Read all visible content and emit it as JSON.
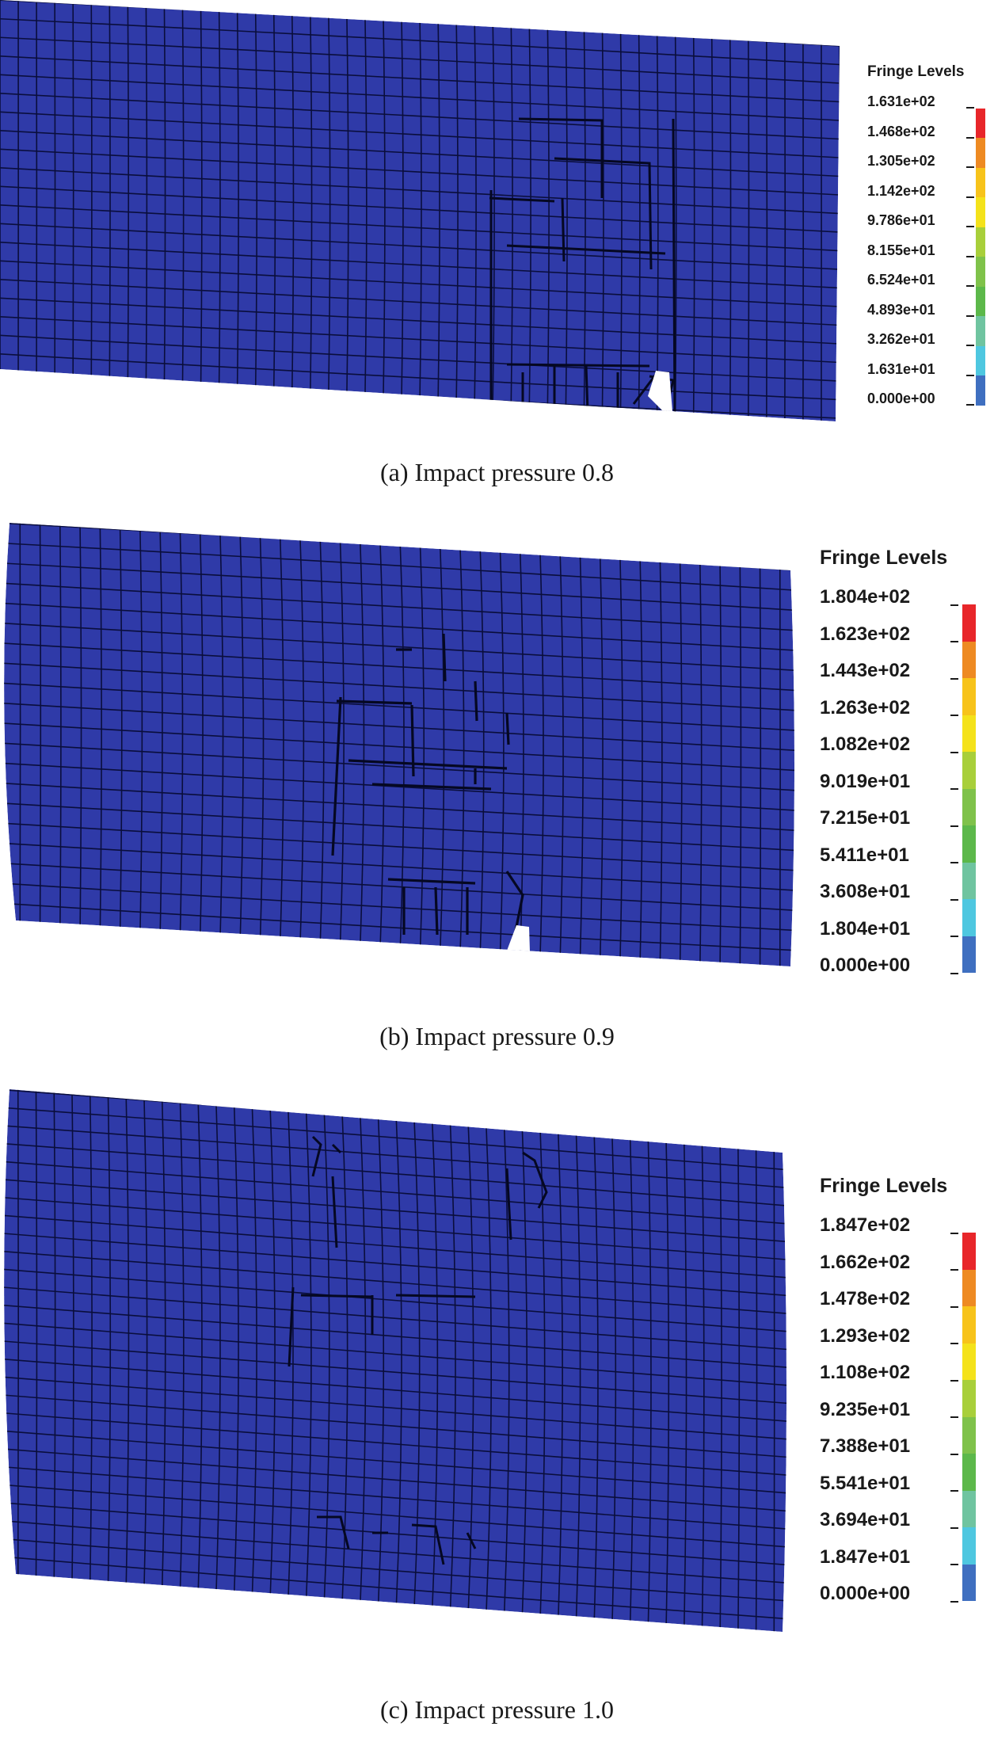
{
  "colors": {
    "mesh_fill": "#2f3aa8",
    "mesh_line": "#0a0e3c",
    "background": "#ffffff",
    "fringe_scale": [
      "#3544a6",
      "#3f6fc0",
      "#4ec7e0",
      "#6fc4a0",
      "#5cb84a",
      "#7fc24a",
      "#a8cf3a",
      "#f4e21a",
      "#f7c31a",
      "#ee8a22",
      "#e8262a"
    ]
  },
  "panels": [
    {
      "id": "a",
      "caption": "(a) Impact pressure 0.8",
      "legend_title": "Fringe Levels",
      "levels": [
        "1.631e+02",
        "1.468e+02",
        "1.305e+02",
        "1.142e+02",
        "9.786e+01",
        "8.155e+01",
        "6.524e+01",
        "4.893e+01",
        "3.262e+01",
        "1.631e+01",
        "0.000e+00"
      ]
    },
    {
      "id": "b",
      "caption": "(b) Impact pressure 0.9",
      "legend_title": "Fringe Levels",
      "levels": [
        "1.804e+02",
        "1.623e+02",
        "1.443e+02",
        "1.263e+02",
        "1.082e+02",
        "9.019e+01",
        "7.215e+01",
        "5.411e+01",
        "3.608e+01",
        "1.804e+01",
        "0.000e+00"
      ]
    },
    {
      "id": "c",
      "caption": "(c) Impact pressure 1.0",
      "legend_title": "Fringe Levels",
      "levels": [
        "1.847e+02",
        "1.662e+02",
        "1.478e+02",
        "1.293e+02",
        "1.108e+02",
        "9.235e+01",
        "7.388e+01",
        "5.541e+01",
        "3.694e+01",
        "1.847e+01",
        "0.000e+00"
      ]
    }
  ]
}
